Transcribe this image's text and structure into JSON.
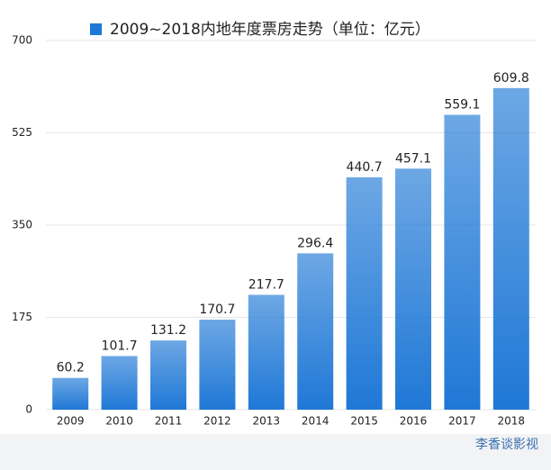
{
  "chart_data": {
    "type": "bar",
    "categories": [
      "2009",
      "2010",
      "2011",
      "2012",
      "2013",
      "2014",
      "2015",
      "2016",
      "2017",
      "2018"
    ],
    "series": [
      {
        "name": "2009~2018内地年度票房走势（单位：亿元）",
        "color": "#1f78d6",
        "values": [
          60.2,
          101.7,
          131.2,
          170.7,
          217.7,
          296.4,
          440.7,
          457.1,
          559.1,
          609.8
        ]
      }
    ],
    "ylim": [
      0,
      700
    ],
    "yticks": [
      0,
      175,
      350,
      525,
      700
    ],
    "grid": true
  },
  "watermark": "李香谈影视"
}
